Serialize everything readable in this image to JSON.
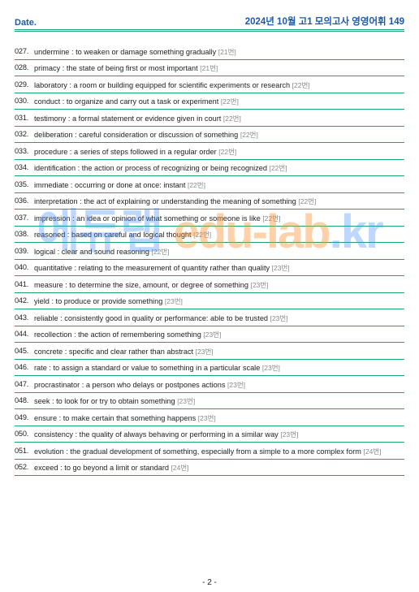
{
  "header": {
    "date_label": "Date.",
    "title": "2024년 10월 고1 모의고사 영영어휘 149"
  },
  "watermark": {
    "prefix": "에듀랩 ",
    "domain": "edu-lab",
    "suffix": ".kr"
  },
  "pagefoot": "- 2 -",
  "colors": {
    "rule": "#19a66a",
    "header_text": "#1a5aa8",
    "body_text": "#222222",
    "ref_text": "#888888",
    "watermark_blue": "rgba(50,130,255,0.32)",
    "watermark_orange": "rgba(255,140,40,0.40)"
  },
  "entries": [
    {
      "n": "027.",
      "t": "undermine : to weaken or damage something gradually",
      "r": "[21번]"
    },
    {
      "n": "028.",
      "t": "primacy : the state of being first or most important",
      "r": "[21번]"
    },
    {
      "n": "029.",
      "t": "laboratory : a room or building equipped for scientific experiments or research",
      "r": "[22번]"
    },
    {
      "n": "030.",
      "t": "conduct : to organize and carry out a task or experiment",
      "r": "[22번]"
    },
    {
      "n": "031.",
      "t": "testimony : a formal statement or evidence given in court",
      "r": "[22번]"
    },
    {
      "n": "032.",
      "t": "deliberation : careful consideration or discussion of something",
      "r": "[22번]"
    },
    {
      "n": "033.",
      "t": "procedure : a series of steps followed in a regular order",
      "r": "[22번]"
    },
    {
      "n": "034.",
      "t": "identification : the action or process of recognizing or being recognized",
      "r": "[22번]"
    },
    {
      "n": "035.",
      "t": "immediate : occurring or done at once: instant",
      "r": "[22번]"
    },
    {
      "n": "036.",
      "t": "interpretation : the act of explaining or understanding the meaning of something",
      "r": "[22번]"
    },
    {
      "n": "037.",
      "t": "impression : an idea or opinion of what something or someone is like",
      "r": "[22번]"
    },
    {
      "n": "038.",
      "t": "reasoned : based on careful and logical thought",
      "r": "[22번]"
    },
    {
      "n": "039.",
      "t": "logical : clear and sound reasoning",
      "r": "[22번]"
    },
    {
      "n": "040.",
      "t": "quantitative : relating to the measurement of quantity rather than quality",
      "r": "[23번]"
    },
    {
      "n": "041.",
      "t": "measure : to determine the size, amount, or degree of something",
      "r": "[23번]"
    },
    {
      "n": "042.",
      "t": "yield : to produce or provide something",
      "r": "[23번]"
    },
    {
      "n": "043.",
      "t": "reliable : consistently good in quality or performance: able to be trusted",
      "r": "[23번]"
    },
    {
      "n": "044.",
      "t": "recollection : the action of remembering something",
      "r": "[23번]"
    },
    {
      "n": "045.",
      "t": "concrete : specific and clear rather than abstract",
      "r": "[23번]"
    },
    {
      "n": "046.",
      "t": "rate : to assign a standard or value to something in a particular scale",
      "r": "[23번]"
    },
    {
      "n": "047.",
      "t": "procrastinator : a person who delays or postpones actions",
      "r": "[23번]"
    },
    {
      "n": "048.",
      "t": "seek : to look for or try to obtain something",
      "r": "[23번]"
    },
    {
      "n": "049.",
      "t": "ensure : to make certain that something happens",
      "r": "[23번]"
    },
    {
      "n": "050.",
      "t": "consistency : the quality of always behaving or performing in a similar way",
      "r": "[23번]"
    },
    {
      "n": "051.",
      "t": "evolution : the gradual development of something, especially from a simple to a more complex form",
      "r": "[24번]"
    },
    {
      "n": "052.",
      "t": "exceed : to go beyond a limit or standard",
      "r": "[24번]"
    }
  ]
}
